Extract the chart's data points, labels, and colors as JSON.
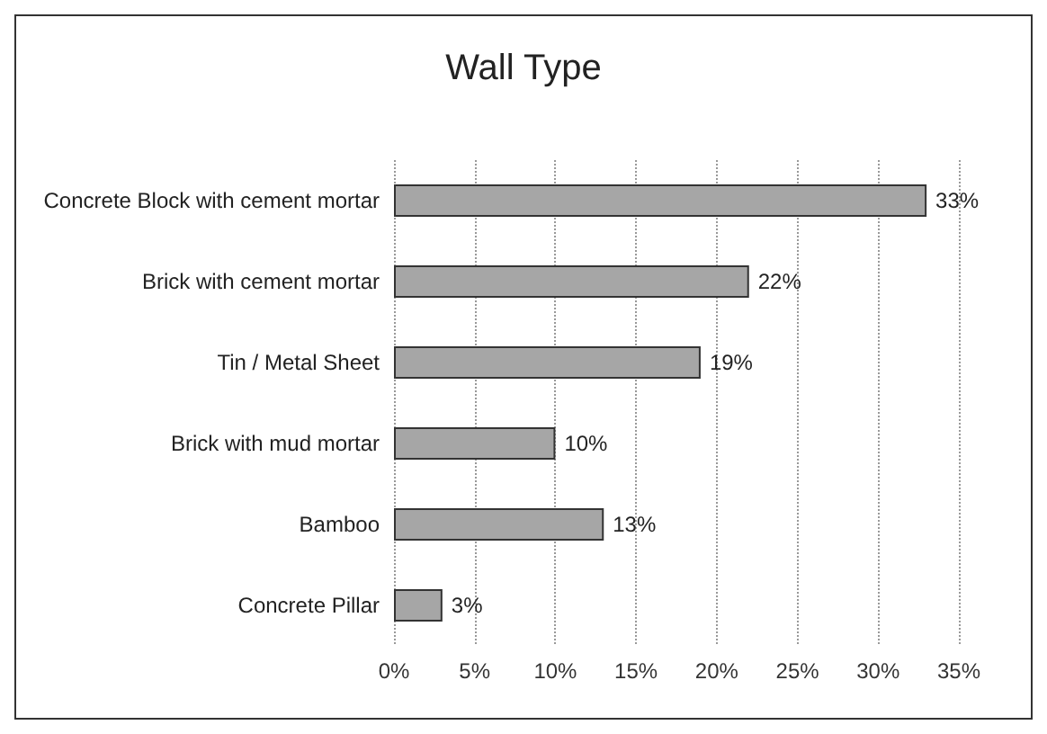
{
  "chart_data": {
    "type": "bar",
    "orientation": "horizontal",
    "title": "Wall Type",
    "categories": [
      "Concrete Block with cement mortar",
      "Brick with cement mortar",
      "Tin / Metal Sheet",
      "Brick with mud mortar",
      "Bamboo",
      "Concrete Pillar"
    ],
    "values": [
      33,
      22,
      19,
      10,
      13,
      3
    ],
    "value_labels": [
      "33%",
      "22%",
      "19%",
      "10%",
      "13%",
      "3%"
    ],
    "color": "#a6a6a6",
    "xlim": [
      0,
      35
    ],
    "xticks": [
      {
        "value": 0,
        "label": "0%"
      },
      {
        "value": 5,
        "label": "5%"
      },
      {
        "value": 10,
        "label": "10%"
      },
      {
        "value": 15,
        "label": "15%"
      },
      {
        "value": 20,
        "label": "20%"
      },
      {
        "value": 25,
        "label": "25%"
      },
      {
        "value": 30,
        "label": "30%"
      },
      {
        "value": 35,
        "label": "35%"
      }
    ],
    "grid": "x"
  }
}
